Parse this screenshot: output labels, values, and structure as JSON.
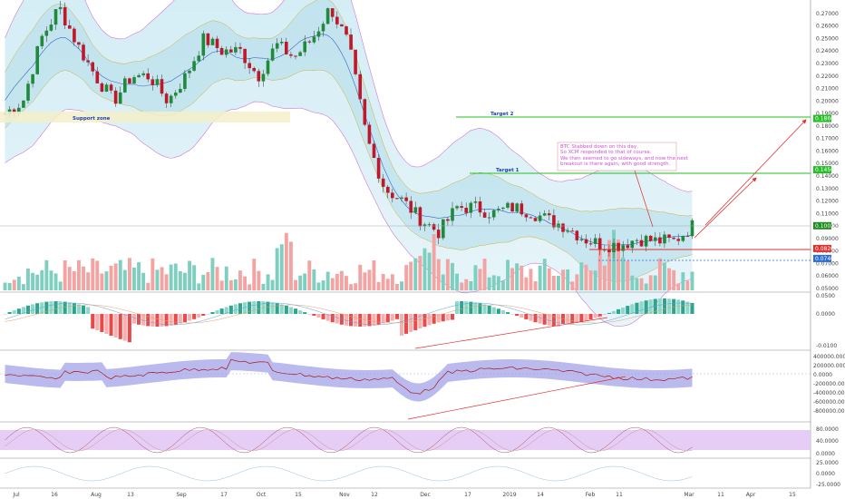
{
  "chart_data": {
    "type": "candlestick",
    "main_axis_ticks": [
      "0.27000",
      "0.26000",
      "0.25000",
      "0.24000",
      "0.23000",
      "0.22000",
      "0.21000",
      "0.20000",
      "0.19000",
      "0.18000",
      "0.17000",
      "0.16000",
      "0.15000",
      "0.14000",
      "0.13000",
      "0.12000",
      "0.11000",
      "0.10000",
      "0.09000",
      "0.08000",
      "0.07000",
      "0.06000",
      "0.05000"
    ],
    "main_ylim": [
      0.05,
      0.275
    ],
    "price_tags": [
      {
        "label": "0.18600",
        "value": 0.186,
        "color": "#22c022"
      },
      {
        "label": "0.14500",
        "value": 0.145,
        "color": "#22c022"
      },
      {
        "label": "0.10020",
        "value": 0.1002,
        "color": "#1e8e1e"
      },
      {
        "label": "0.08200",
        "value": 0.082,
        "color": "#e03030"
      },
      {
        "label": "0.07400",
        "value": 0.074,
        "color": "#2a6ed8"
      }
    ],
    "annotations": {
      "support": "Support zone",
      "target1": "Target 1",
      "target2": "Target 2",
      "note_lines": [
        "BTC Stabbed down on this day,",
        "So XCM responded to that of course.",
        "",
        "We then seemed to go sideways, and now the next",
        "breakout is there again, with good strength."
      ]
    },
    "close_path": [
      0.19,
      0.2,
      0.25,
      0.275,
      0.245,
      0.22,
      0.2,
      0.22,
      0.22,
      0.2,
      0.22,
      0.25,
      0.24,
      0.24,
      0.22,
      0.245,
      0.235,
      0.25,
      0.275,
      0.245,
      0.17,
      0.13,
      0.12,
      0.105,
      0.095,
      0.115,
      0.115,
      0.11,
      0.115,
      0.112,
      0.105,
      0.1,
      0.09,
      0.085,
      0.085,
      0.09,
      0.088,
      0.088,
      0.1
    ],
    "macd_ticks": [
      "0.0500",
      "0.0000",
      "-0.0100"
    ],
    "obv_ticks": [
      "400000.0000",
      "200000.0000",
      "0.0000",
      "-200000.0000",
      "-400000.0000",
      "-600000.0000",
      "-800000.0000"
    ],
    "stoch_ticks": [
      "80.0000",
      "40.0000",
      "0.0000"
    ],
    "last_ticks": [
      "25.0000",
      "0.0000",
      "-25.0000"
    ],
    "x_labels": [
      "Jul",
      "16",
      "Aug",
      "13",
      "Sep",
      "17",
      "Oct",
      "15",
      "Nov",
      "12",
      "Dec",
      "17",
      "2019",
      "14",
      "Feb",
      "11",
      "Mar",
      "11",
      "Apr",
      "15"
    ]
  }
}
